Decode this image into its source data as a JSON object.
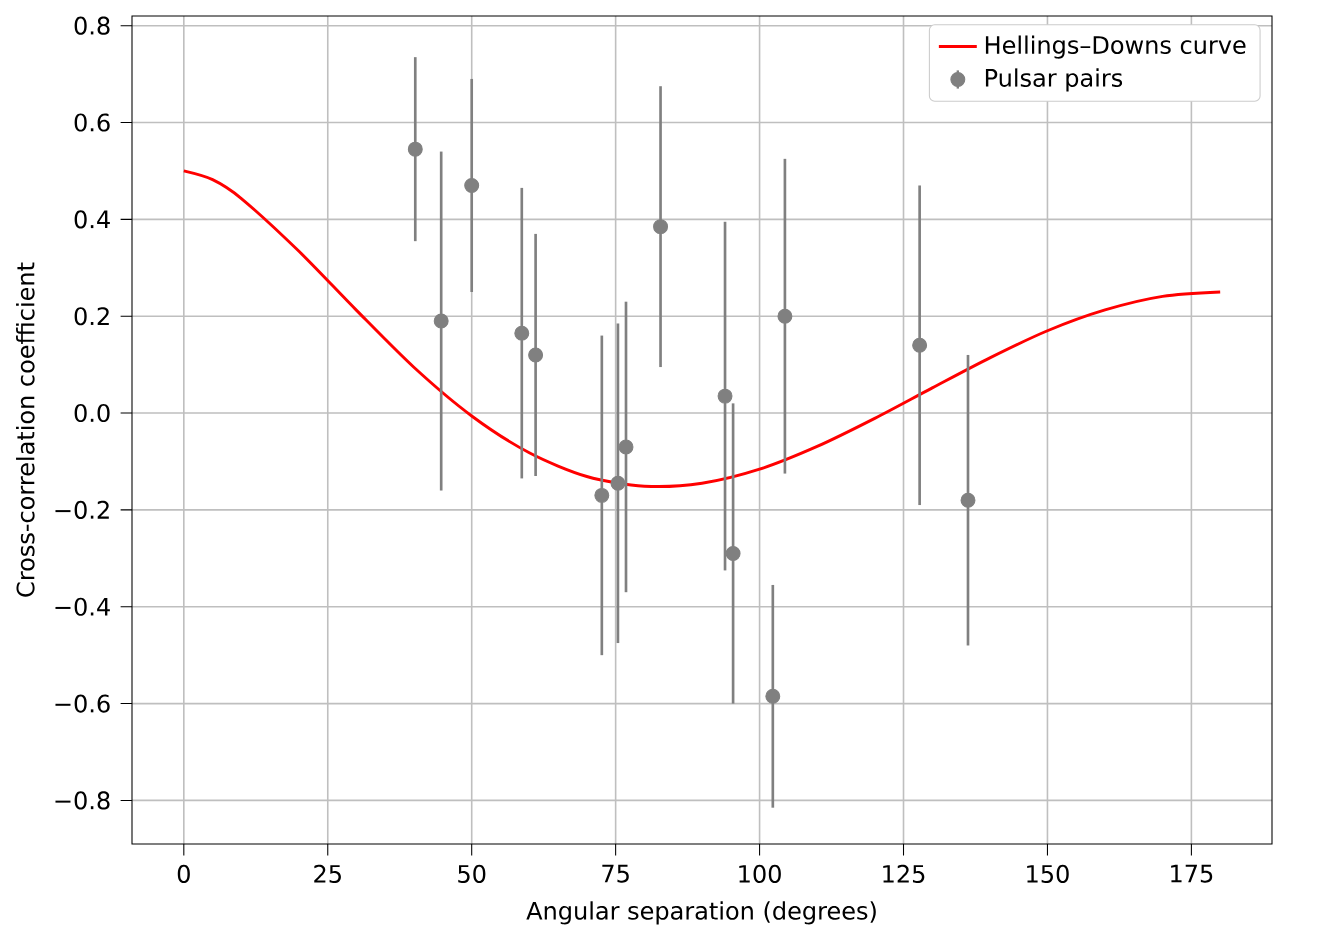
{
  "chart_data": {
    "type": "line",
    "xlabel": "Angular separation (degrees)",
    "ylabel": "Cross-correlation coefficient",
    "xlim": [
      -9,
      189
    ],
    "ylim": [
      -0.89,
      0.82
    ],
    "xticks": [
      0,
      25,
      50,
      75,
      100,
      125,
      150,
      175
    ],
    "yticks": [
      {
        "value": -0.8,
        "label": "−0.8"
      },
      {
        "value": -0.6,
        "label": "−0.6"
      },
      {
        "value": -0.4,
        "label": "−0.4"
      },
      {
        "value": -0.2,
        "label": "−0.2"
      },
      {
        "value": 0,
        "label": "0.0"
      },
      {
        "value": 0.2,
        "label": "0.2"
      },
      {
        "value": 0.4,
        "label": "0.4"
      },
      {
        "value": 0.6,
        "label": "0.6"
      },
      {
        "value": 0.8,
        "label": "0.8"
      }
    ],
    "grid": true,
    "legend": "top right",
    "series": [
      {
        "name": "Hellings–Downs curve",
        "type": "line",
        "color": "#ff0000",
        "marker": "none",
        "x": [
          0,
          5,
          10,
          20,
          30,
          40,
          50,
          60,
          70,
          80,
          90,
          100,
          110,
          120,
          130,
          140,
          150,
          160,
          170,
          180
        ],
        "values": [
          0.5,
          0.482,
          0.443,
          0.334,
          0.212,
          0.094,
          -0.006,
          -0.082,
          -0.131,
          -0.151,
          -0.145,
          -0.116,
          -0.069,
          -0.011,
          0.052,
          0.114,
          0.17,
          0.213,
          0.241,
          0.25
        ]
      },
      {
        "name": "Pulsar pairs",
        "type": "scatter",
        "color": "#808080",
        "marker": "circle",
        "x": [
          40.2,
          44.7,
          50,
          58.7,
          61.1,
          72.6,
          75.4,
          76.8,
          82.8,
          94,
          95.4,
          102.3,
          104.4,
          127.8,
          136.2
        ],
        "values": [
          0.545,
          0.19,
          0.47,
          0.165,
          0.12,
          -0.17,
          -0.145,
          -0.07,
          0.385,
          0.035,
          -0.29,
          -0.585,
          0.2,
          0.14,
          -0.18
        ],
        "errors": [
          0.19,
          0.35,
          0.22,
          0.3,
          0.25,
          0.33,
          0.33,
          0.3,
          0.29,
          0.36,
          0.31,
          0.23,
          0.325,
          0.33,
          0.3
        ]
      }
    ]
  }
}
